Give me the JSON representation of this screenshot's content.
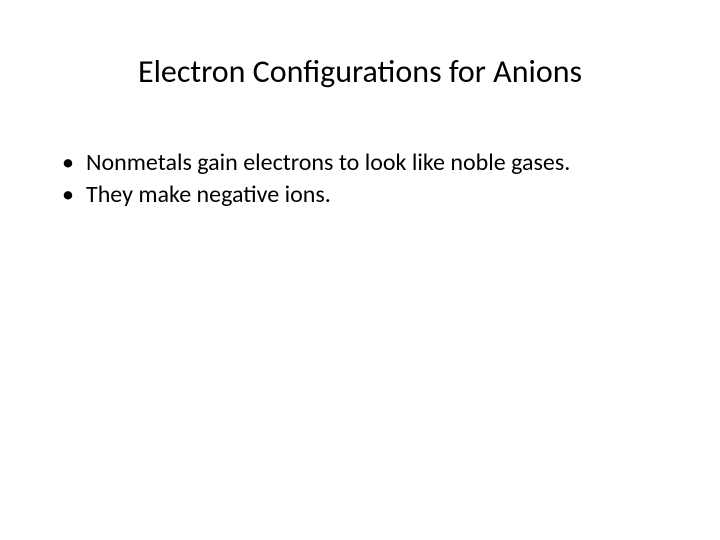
{
  "slide": {
    "title": "Electron Configurations for Anions",
    "bullets": [
      "Nonmetals gain electrons to look like noble gases.",
      "They make negative ions."
    ],
    "title_fontsize": 32,
    "body_fontsize": 24,
    "text_color": "#000000",
    "background_color": "#ffffff",
    "font_family": "Calibri"
  }
}
